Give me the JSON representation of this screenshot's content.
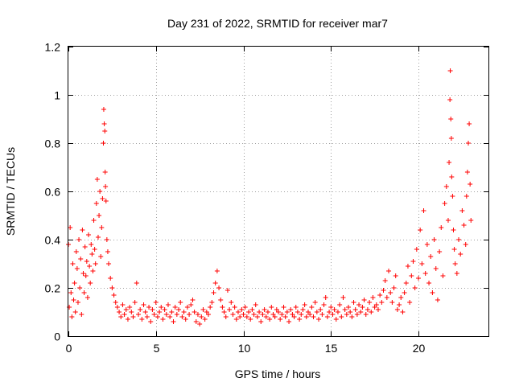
{
  "chart_data": {
    "type": "scatter",
    "title": "Day 231 of 2022, SRMTID for receiver mar7",
    "xlabel": "GPS time / hours",
    "ylabel": "SRMTID / TECUs",
    "xlim": [
      0,
      24
    ],
    "ylim": [
      0,
      1.2
    ],
    "x_ticks": [
      0,
      5,
      10,
      15,
      20
    ],
    "x_tick_labels": [
      "0",
      "5",
      "10",
      "15",
      "20"
    ],
    "y_ticks": [
      0,
      0.2,
      0.4,
      0.6,
      0.8,
      1,
      1.2
    ],
    "y_tick_labels": [
      "0",
      "0.2",
      "0.4",
      "0.6",
      "0.8",
      "1",
      "1.2"
    ],
    "grid": true,
    "marker": "+",
    "color": "#ff0000",
    "series": [
      {
        "name": "SRMTID",
        "x": [
          0.0,
          0.05,
          0.1,
          0.15,
          0.2,
          0.25,
          0.3,
          0.35,
          0.4,
          0.45,
          0.5,
          0.55,
          0.6,
          0.65,
          0.7,
          0.75,
          0.8,
          0.85,
          0.9,
          0.95,
          1.0,
          1.05,
          1.1,
          1.15,
          1.2,
          1.25,
          1.3,
          1.35,
          1.4,
          1.45,
          1.5,
          1.55,
          1.6,
          1.65,
          1.7,
          1.75,
          1.8,
          1.85,
          1.9,
          1.95,
          2.0,
          2.02,
          2.05,
          2.08,
          2.1,
          2.12,
          2.15,
          2.2,
          2.25,
          2.3,
          2.4,
          2.5,
          2.6,
          2.7,
          2.8,
          2.9,
          3.0,
          3.1,
          3.2,
          3.3,
          3.4,
          3.5,
          3.6,
          3.7,
          3.8,
          3.9,
          4.0,
          4.1,
          4.2,
          4.3,
          4.4,
          4.5,
          4.6,
          4.7,
          4.8,
          4.9,
          5.0,
          5.1,
          5.2,
          5.3,
          5.4,
          5.5,
          5.6,
          5.7,
          5.8,
          5.9,
          6.0,
          6.1,
          6.2,
          6.3,
          6.4,
          6.5,
          6.6,
          6.7,
          6.8,
          6.9,
          7.0,
          7.1,
          7.2,
          7.3,
          7.4,
          7.5,
          7.6,
          7.7,
          7.8,
          7.9,
          8.0,
          8.1,
          8.2,
          8.3,
          8.4,
          8.5,
          8.6,
          8.7,
          8.8,
          8.9,
          9.0,
          9.1,
          9.2,
          9.3,
          9.4,
          9.5,
          9.6,
          9.7,
          9.8,
          9.9,
          10.0,
          10.1,
          10.2,
          10.3,
          10.4,
          10.5,
          10.6,
          10.7,
          10.8,
          10.9,
          11.0,
          11.1,
          11.2,
          11.3,
          11.4,
          11.5,
          11.6,
          11.7,
          11.8,
          11.9,
          12.0,
          12.1,
          12.2,
          12.3,
          12.4,
          12.5,
          12.6,
          12.7,
          12.8,
          12.9,
          13.0,
          13.1,
          13.2,
          13.3,
          13.4,
          13.5,
          13.6,
          13.7,
          13.8,
          13.9,
          14.0,
          14.1,
          14.2,
          14.3,
          14.4,
          14.5,
          14.6,
          14.7,
          14.8,
          14.9,
          15.0,
          15.1,
          15.2,
          15.3,
          15.4,
          15.5,
          15.6,
          15.7,
          15.8,
          15.9,
          16.0,
          16.1,
          16.2,
          16.3,
          16.4,
          16.5,
          16.6,
          16.7,
          16.8,
          16.9,
          17.0,
          17.1,
          17.2,
          17.3,
          17.4,
          17.5,
          17.6,
          17.7,
          17.8,
          17.9,
          18.0,
          18.1,
          18.2,
          18.3,
          18.4,
          18.5,
          18.6,
          18.7,
          18.8,
          18.9,
          19.0,
          19.1,
          19.2,
          19.3,
          19.4,
          19.5,
          19.6,
          19.7,
          19.8,
          19.9,
          20.0,
          20.1,
          20.2,
          20.3,
          20.4,
          20.5,
          20.6,
          20.7,
          20.8,
          20.9,
          21.0,
          21.1,
          21.2,
          21.3,
          21.4,
          21.5,
          21.6,
          21.7,
          21.75,
          21.8,
          21.82,
          21.85,
          21.88,
          21.9,
          21.95,
          22.0,
          22.05,
          22.1,
          22.2,
          22.3,
          22.4,
          22.5,
          22.6,
          22.7,
          22.75,
          22.8,
          22.85,
          22.9,
          22.95,
          23.0
        ],
        "y": [
          0.38,
          0.12,
          0.45,
          0.18,
          0.08,
          0.3,
          0.15,
          0.22,
          0.1,
          0.35,
          0.28,
          0.14,
          0.4,
          0.2,
          0.32,
          0.09,
          0.44,
          0.26,
          0.18,
          0.37,
          0.25,
          0.31,
          0.16,
          0.42,
          0.29,
          0.22,
          0.38,
          0.34,
          0.27,
          0.48,
          0.36,
          0.3,
          0.55,
          0.65,
          0.41,
          0.5,
          0.6,
          0.33,
          0.45,
          0.57,
          0.8,
          0.94,
          0.88,
          0.85,
          0.68,
          0.62,
          0.56,
          0.4,
          0.35,
          0.3,
          0.24,
          0.2,
          0.17,
          0.14,
          0.12,
          0.1,
          0.08,
          0.13,
          0.09,
          0.11,
          0.07,
          0.12,
          0.1,
          0.08,
          0.14,
          0.22,
          0.09,
          0.11,
          0.07,
          0.13,
          0.1,
          0.08,
          0.12,
          0.06,
          0.11,
          0.09,
          0.14,
          0.08,
          0.1,
          0.12,
          0.07,
          0.11,
          0.09,
          0.13,
          0.08,
          0.1,
          0.06,
          0.12,
          0.09,
          0.11,
          0.14,
          0.08,
          0.1,
          0.07,
          0.12,
          0.09,
          0.13,
          0.15,
          0.1,
          0.06,
          0.09,
          0.05,
          0.08,
          0.11,
          0.07,
          0.1,
          0.09,
          0.12,
          0.14,
          0.18,
          0.22,
          0.27,
          0.2,
          0.15,
          0.12,
          0.1,
          0.08,
          0.19,
          0.11,
          0.14,
          0.09,
          0.12,
          0.07,
          0.1,
          0.08,
          0.11,
          0.09,
          0.12,
          0.08,
          0.1,
          0.07,
          0.11,
          0.09,
          0.13,
          0.08,
          0.1,
          0.06,
          0.09,
          0.11,
          0.08,
          0.1,
          0.07,
          0.12,
          0.09,
          0.08,
          0.11,
          0.1,
          0.07,
          0.09,
          0.12,
          0.08,
          0.1,
          0.06,
          0.11,
          0.09,
          0.08,
          0.12,
          0.1,
          0.07,
          0.09,
          0.11,
          0.13,
          0.08,
          0.1,
          0.09,
          0.12,
          0.08,
          0.14,
          0.1,
          0.07,
          0.11,
          0.09,
          0.13,
          0.16,
          0.08,
          0.1,
          0.12,
          0.09,
          0.11,
          0.07,
          0.1,
          0.13,
          0.08,
          0.16,
          0.11,
          0.09,
          0.12,
          0.1,
          0.08,
          0.14,
          0.11,
          0.09,
          0.13,
          0.1,
          0.12,
          0.15,
          0.09,
          0.11,
          0.14,
          0.1,
          0.16,
          0.12,
          0.13,
          0.11,
          0.17,
          0.14,
          0.19,
          0.23,
          0.16,
          0.27,
          0.18,
          0.14,
          0.2,
          0.25,
          0.11,
          0.13,
          0.16,
          0.1,
          0.18,
          0.22,
          0.29,
          0.14,
          0.25,
          0.31,
          0.2,
          0.36,
          0.24,
          0.44,
          0.3,
          0.52,
          0.26,
          0.38,
          0.22,
          0.33,
          0.18,
          0.4,
          0.28,
          0.15,
          0.35,
          0.45,
          0.25,
          0.55,
          0.62,
          0.48,
          0.72,
          0.98,
          1.1,
          0.9,
          0.82,
          0.66,
          0.58,
          0.44,
          0.36,
          0.3,
          0.26,
          0.4,
          0.34,
          0.52,
          0.46,
          0.38,
          0.58,
          0.68,
          0.8,
          0.88,
          0.63,
          0.48
        ]
      }
    ]
  }
}
